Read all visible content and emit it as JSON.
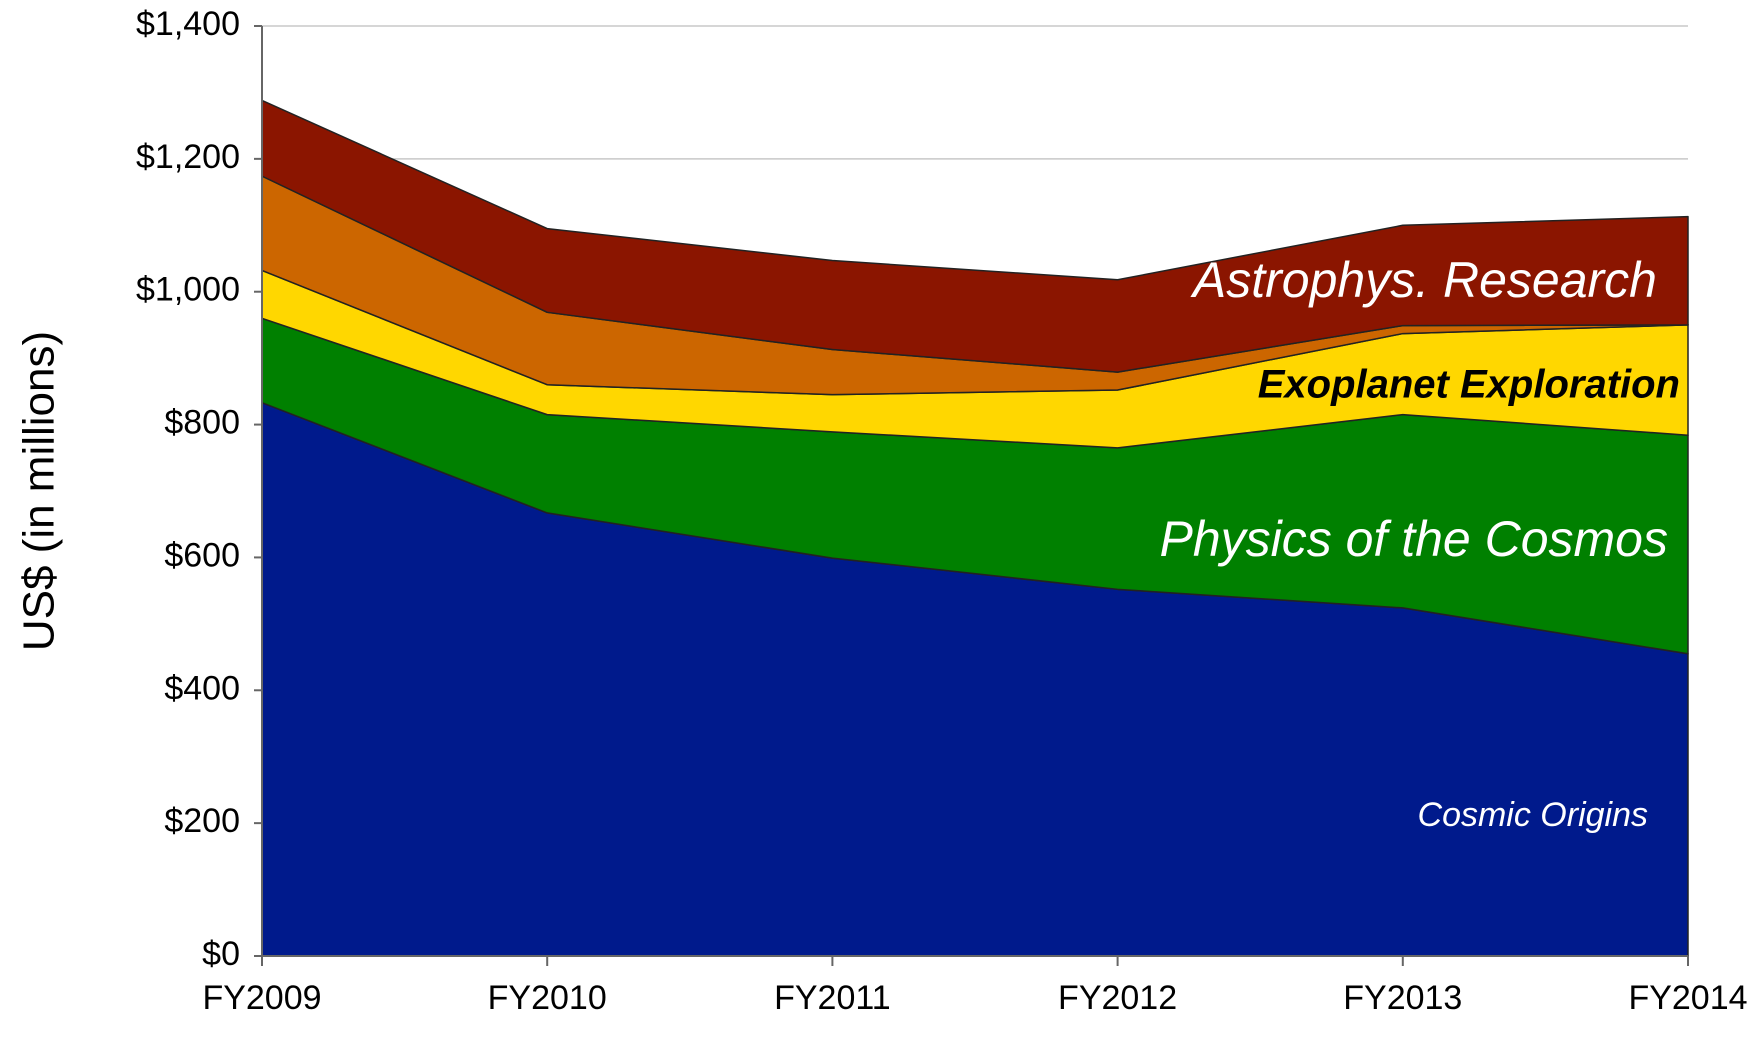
{
  "chart_data": {
    "type": "stacked_area",
    "ylabel": "US$ (in millions)",
    "categories": [
      "FY2009",
      "FY2010",
      "FY2011",
      "FY2012",
      "FY2013",
      "FY2014"
    ],
    "series": [
      {
        "name": "Cosmic Origins",
        "color": "#001a8c",
        "values": [
          833,
          667,
          599,
          552,
          524,
          455
        ]
      },
      {
        "name": "Physics of the Cosmos",
        "color": "#008000",
        "values": [
          127,
          148,
          190,
          213,
          291,
          329
        ]
      },
      {
        "name": "Exoplanet Exploration",
        "color": "#ffd700",
        "values": [
          72,
          45,
          56,
          87,
          122,
          166
        ]
      },
      {
        "name": null,
        "color": "#cc6600",
        "values": [
          142,
          109,
          68,
          27,
          12,
          0
        ]
      },
      {
        "name": "Astrophys. Research",
        "color": "#8b1500",
        "values": [
          114,
          126,
          134,
          139,
          151,
          163
        ]
      }
    ],
    "ylim": [
      0,
      1400
    ],
    "yticks": [
      {
        "value": 0,
        "label": "$0"
      },
      {
        "value": 200,
        "label": "$200"
      },
      {
        "value": 400,
        "label": "$400"
      },
      {
        "value": 600,
        "label": "$600"
      },
      {
        "value": 800,
        "label": "$800"
      },
      {
        "value": 1000,
        "label": "$1,000"
      },
      {
        "value": 1200,
        "label": "$1,200"
      },
      {
        "value": 1400,
        "label": "$1,400"
      }
    ],
    "grid": true
  }
}
